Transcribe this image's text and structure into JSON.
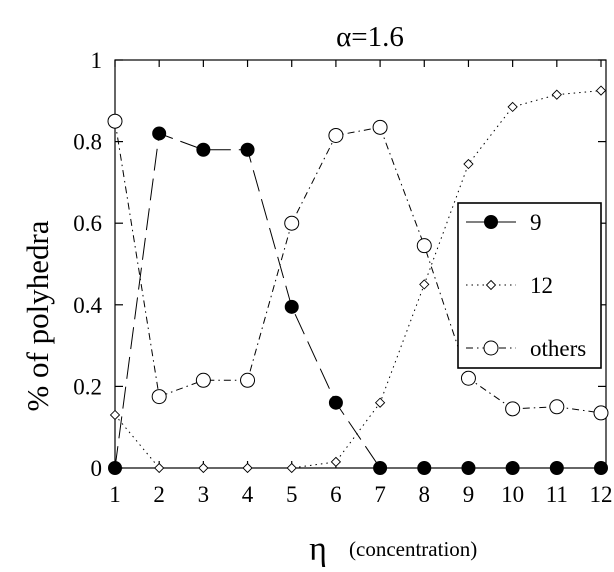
{
  "chart_data": {
    "type": "line",
    "title": "α=1.6",
    "xlabel_symbol": "η",
    "xlabel_text": "(concentration)",
    "ylabel": "% of polyhedra",
    "x": [
      1,
      2,
      3,
      4,
      5,
      6,
      7,
      8,
      9,
      10,
      11,
      12
    ],
    "xlim": [
      1,
      12
    ],
    "ylim": [
      0,
      1
    ],
    "x_ticks": [
      "1",
      "2",
      "3",
      "4",
      "5",
      "6",
      "7",
      "8",
      "9",
      "10",
      "11",
      "12"
    ],
    "y_ticks": [
      {
        "value": 0,
        "label": "0"
      },
      {
        "value": 0.2,
        "label": "0.2"
      },
      {
        "value": 0.4,
        "label": "0.4"
      },
      {
        "value": 0.6,
        "label": "0.6"
      },
      {
        "value": 0.8,
        "label": "0.8"
      },
      {
        "value": 1,
        "label": "1"
      }
    ],
    "grid": false,
    "legend_position": "right",
    "series": [
      {
        "name": "9",
        "marker": "filled-circle",
        "line_style": "long-dash",
        "color": "#000000",
        "values": [
          0.0,
          0.82,
          0.78,
          0.78,
          0.395,
          0.16,
          0.0,
          0.0,
          0.0,
          0.0,
          0.0,
          0.0
        ]
      },
      {
        "name": "12",
        "marker": "open-diamond",
        "line_style": "dotted",
        "color": "#000000",
        "values": [
          0.13,
          0.0,
          0.0,
          0.0,
          0.0,
          0.015,
          0.16,
          0.45,
          0.745,
          0.885,
          0.915,
          0.925
        ]
      },
      {
        "name": "others",
        "marker": "open-circle",
        "line_style": "dash-dot",
        "color": "#000000",
        "values": [
          0.85,
          0.175,
          0.215,
          0.215,
          0.6,
          0.815,
          0.835,
          0.545,
          0.22,
          0.145,
          0.15,
          0.135
        ]
      }
    ]
  }
}
